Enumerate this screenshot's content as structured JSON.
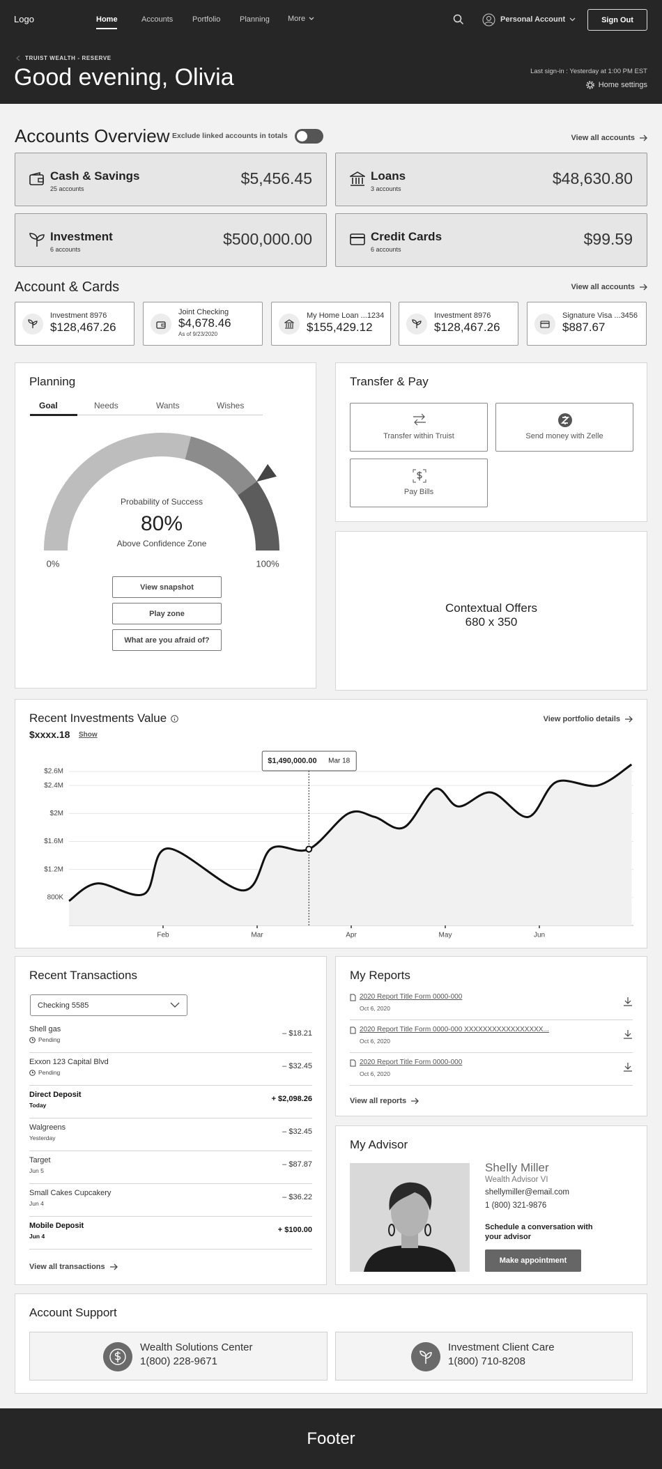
{
  "header": {
    "logo": "Logo",
    "nav": [
      "Home",
      "Accounts",
      "Portfolio",
      "Planning",
      "More"
    ],
    "account_menu": "Personal Account",
    "sign_out": "Sign Out",
    "eyebrow": "TRUIST WEALTH - RESERVE",
    "greeting": "Good evening, Olivia",
    "last_sign_in": "Last sign-in : Yesterday at 1:00 PM EST",
    "home_settings": "Home settings"
  },
  "overview": {
    "title": "Accounts Overview",
    "toggle_label": "Exclude linked accounts in totals",
    "view_all": "View all accounts",
    "cards": [
      {
        "name": "Cash & Savings",
        "count": "25 accounts",
        "amount": "$5,456.45"
      },
      {
        "name": "Loans",
        "count": "3 accounts",
        "amount": "$48,630.80"
      },
      {
        "name": "Investment",
        "count": "6 accounts",
        "amount": "$500,000.00"
      },
      {
        "name": "Credit Cards",
        "count": "6 accounts",
        "amount": "$99.59"
      }
    ]
  },
  "accounts_cards": {
    "title": "Account & Cards",
    "view_all": "View all accounts",
    "items": [
      {
        "name": "Investment 8976",
        "amount": "$128,467.26"
      },
      {
        "name": "Joint Checking",
        "amount": "$4,678.46",
        "note": "As of 9/23/2020"
      },
      {
        "name": "My Home Loan ...1234",
        "amount": "$155,429.12"
      },
      {
        "name": "Investment 8976",
        "amount": "$128,467.26"
      },
      {
        "name": "Signature Visa ...3456",
        "amount": "$887.67"
      }
    ]
  },
  "planning": {
    "title": "Planning",
    "tabs": [
      "Goal",
      "Needs",
      "Wants",
      "Wishes"
    ],
    "buttons": [
      "View snapshot",
      "Play zone",
      "What are you afraid of?"
    ]
  },
  "transfer": {
    "title": "Transfer & Pay",
    "actions": [
      "Transfer within Truist",
      "Send money with Zelle",
      "Pay Bills"
    ]
  },
  "offers": {
    "lines": [
      "Contextual Offers",
      "680 x 350"
    ]
  },
  "chart_data": [
    {
      "type": "gauge",
      "title": "Probability of Success",
      "subtitle": "Above Confidence Zone",
      "min": 0,
      "max": 100,
      "min_label": "0%",
      "max_label": "100%",
      "value": 80,
      "value_label": "80%",
      "zones": [
        58,
        80
      ],
      "colors": [
        "#bdbdbd",
        "#8c8c8c",
        "#5c5c5c"
      ]
    },
    {
      "type": "line",
      "title": "Recent Investments Value",
      "subtitle": "$xxxx.18",
      "show_label": "Show",
      "link": "View portfolio details",
      "x": [
        0,
        0.3,
        0.8,
        1.05,
        1.85,
        2.15,
        2.55,
        2.97,
        3.25,
        3.56,
        3.89,
        4.14,
        4.49,
        4.88,
        5.18,
        5.62,
        5.98
      ],
      "values": [
        750000,
        1000000,
        850000,
        1500000,
        900000,
        1500000,
        1490000,
        2000000,
        1950000,
        1800000,
        2350000,
        2100000,
        2300000,
        1950000,
        2450000,
        2400000,
        2700000
      ],
      "color": "#111111",
      "area_color": "#f1f1f1",
      "xlim": [
        0,
        6
      ],
      "xticks": [
        {
          "value": 1,
          "label": "Feb"
        },
        {
          "value": 2,
          "label": "Mar"
        },
        {
          "value": 3,
          "label": "Apr"
        },
        {
          "value": 4,
          "label": "May"
        },
        {
          "value": 5,
          "label": "Jun"
        }
      ],
      "ylim": [
        400000,
        2800000
      ],
      "yticks": [
        {
          "value": 800000,
          "label": "800K"
        },
        {
          "value": 1200000,
          "label": "$1.2M"
        },
        {
          "value": 1600000,
          "label": "$1.6M"
        },
        {
          "value": 2000000,
          "label": "$2M"
        },
        {
          "value": 2400000,
          "label": "$2.4M"
        },
        {
          "value": 2600000,
          "label": "$2.6M"
        }
      ],
      "grid": true,
      "tooltip": {
        "x": 2.55,
        "value": 1490000,
        "value_label": "$1,490,000.00",
        "date": "Mar 18"
      }
    }
  ],
  "transactions": {
    "title": "Recent Transactions",
    "account_select": "Checking 5585",
    "view_all": "View all transactions",
    "rows": [
      {
        "payee": "Shell gas",
        "status": "Pending",
        "amount": "– $18.21"
      },
      {
        "payee": "Exxon 123 Capital Blvd",
        "status": "Pending",
        "amount": "– $32.45"
      },
      {
        "payee": "Direct Deposit",
        "status": "Today",
        "amount": "+ $2,098.26"
      },
      {
        "payee": "Walgreens",
        "status": "Yesterday",
        "amount": "– $32.45"
      },
      {
        "payee": "Target",
        "status": "Jun 5",
        "amount": "– $87.87"
      },
      {
        "payee": "Small Cakes Cupcakery",
        "status": "Jun 4",
        "amount": "– $36.22"
      },
      {
        "payee": "Mobile Deposit",
        "status": "Jun 4",
        "amount": "+ $100.00"
      }
    ]
  },
  "reports": {
    "title": "My Reports",
    "view_all": "View all reports",
    "items": [
      {
        "title": "2020 Report Title Form 0000-000",
        "date": "Oct 6, 2020"
      },
      {
        "title": "2020 Report Title Form 0000-000 XXXXXXXXXXXXXXXXX...",
        "date": "Oct 6, 2020"
      },
      {
        "title": "2020 Report Title Form 0000-000",
        "date": "Oct 6, 2020"
      }
    ]
  },
  "advisor": {
    "title": "My Advisor",
    "name": "Shelly Miller",
    "role": "Wealth Advisor VI",
    "email": "shellymiller@email.com",
    "phone": "1 (800) 321-9876",
    "prompt": "Schedule a conversation with your advisor",
    "button": "Make appointment"
  },
  "support": {
    "title": "Account Support",
    "centers": [
      {
        "name": "Wealth Solutions Center",
        "phone": "1(800) 228-9671"
      },
      {
        "name": "Investment Client Care",
        "phone": "1(800) 710-8208"
      }
    ]
  },
  "footer": {
    "text": "Footer"
  }
}
